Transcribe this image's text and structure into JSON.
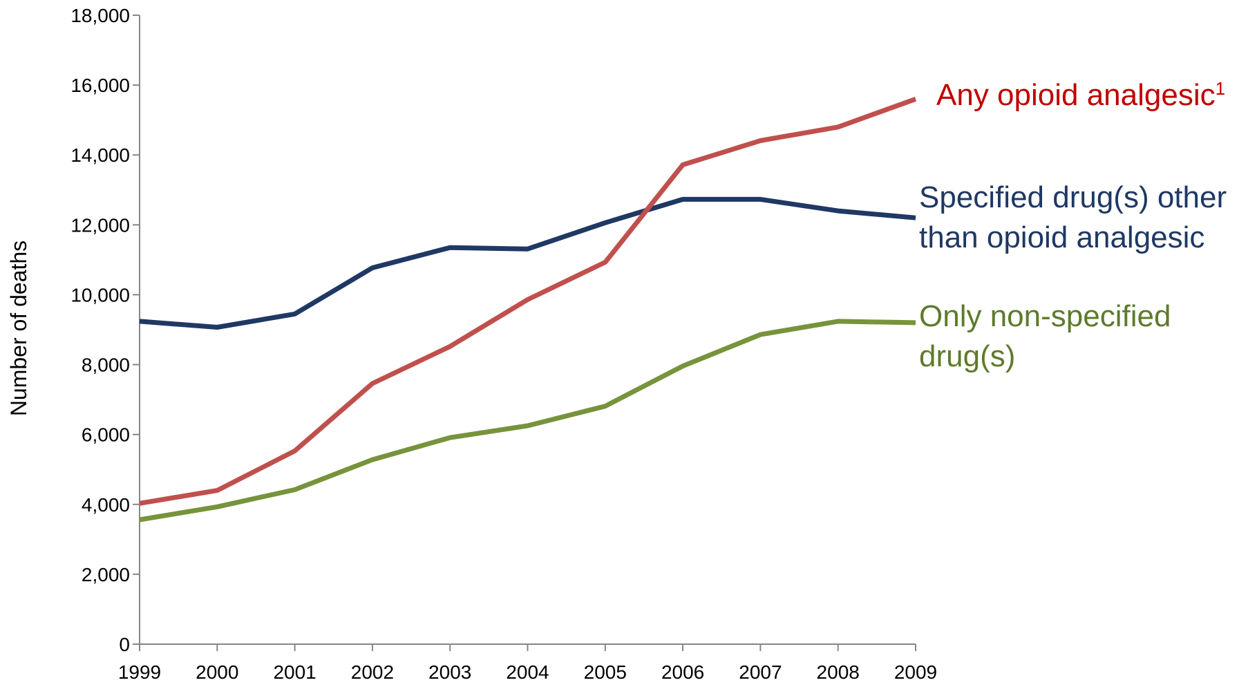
{
  "chart_data": {
    "type": "line",
    "title": "",
    "xlabel": "",
    "ylabel": "Number of deaths",
    "categories": [
      "1999",
      "2000",
      "2001",
      "2002",
      "2003",
      "2004",
      "2005",
      "2006",
      "2007",
      "2008",
      "2009"
    ],
    "ylim": [
      0,
      18000
    ],
    "yticks": [
      0,
      2000,
      4000,
      6000,
      8000,
      10000,
      12000,
      14000,
      16000,
      18000
    ],
    "ytick_labels": [
      "0",
      "2,000",
      "4,000",
      "6,000",
      "8,000",
      "10,000",
      "12,000",
      "14,000",
      "16,000",
      "18,000"
    ],
    "grid": false,
    "legend": "inline-right",
    "series": [
      {
        "key": "opioid",
        "name": "Any opioid analgesic",
        "superscript": "1",
        "label_lines": [
          "Any opioid analgesic"
        ],
        "color": "#c0504d",
        "label_color": "#c00000",
        "values": [
          4030,
          4400,
          5530,
          7460,
          8520,
          9860,
          10930,
          13720,
          14410,
          14800,
          15600
        ]
      },
      {
        "key": "other",
        "name": "Specified drug(s) other than opioid analgesic",
        "label_lines": [
          "Specified drug(s) other",
          "than opioid analgesic"
        ],
        "color": "#1f3864",
        "label_color": "#1f3864",
        "values": [
          9240,
          9070,
          9450,
          10770,
          11350,
          11310,
          12060,
          12730,
          12730,
          12400,
          12200
        ]
      },
      {
        "key": "nonspecified",
        "name": "Only non-specified drug(s)",
        "label_lines": [
          "Only non-specified",
          "drug(s)"
        ],
        "color": "#77933c",
        "label_color": "#5e7a2c",
        "values": [
          3560,
          3930,
          4420,
          5280,
          5910,
          6250,
          6810,
          7960,
          8860,
          9240,
          9200
        ]
      }
    ]
  }
}
